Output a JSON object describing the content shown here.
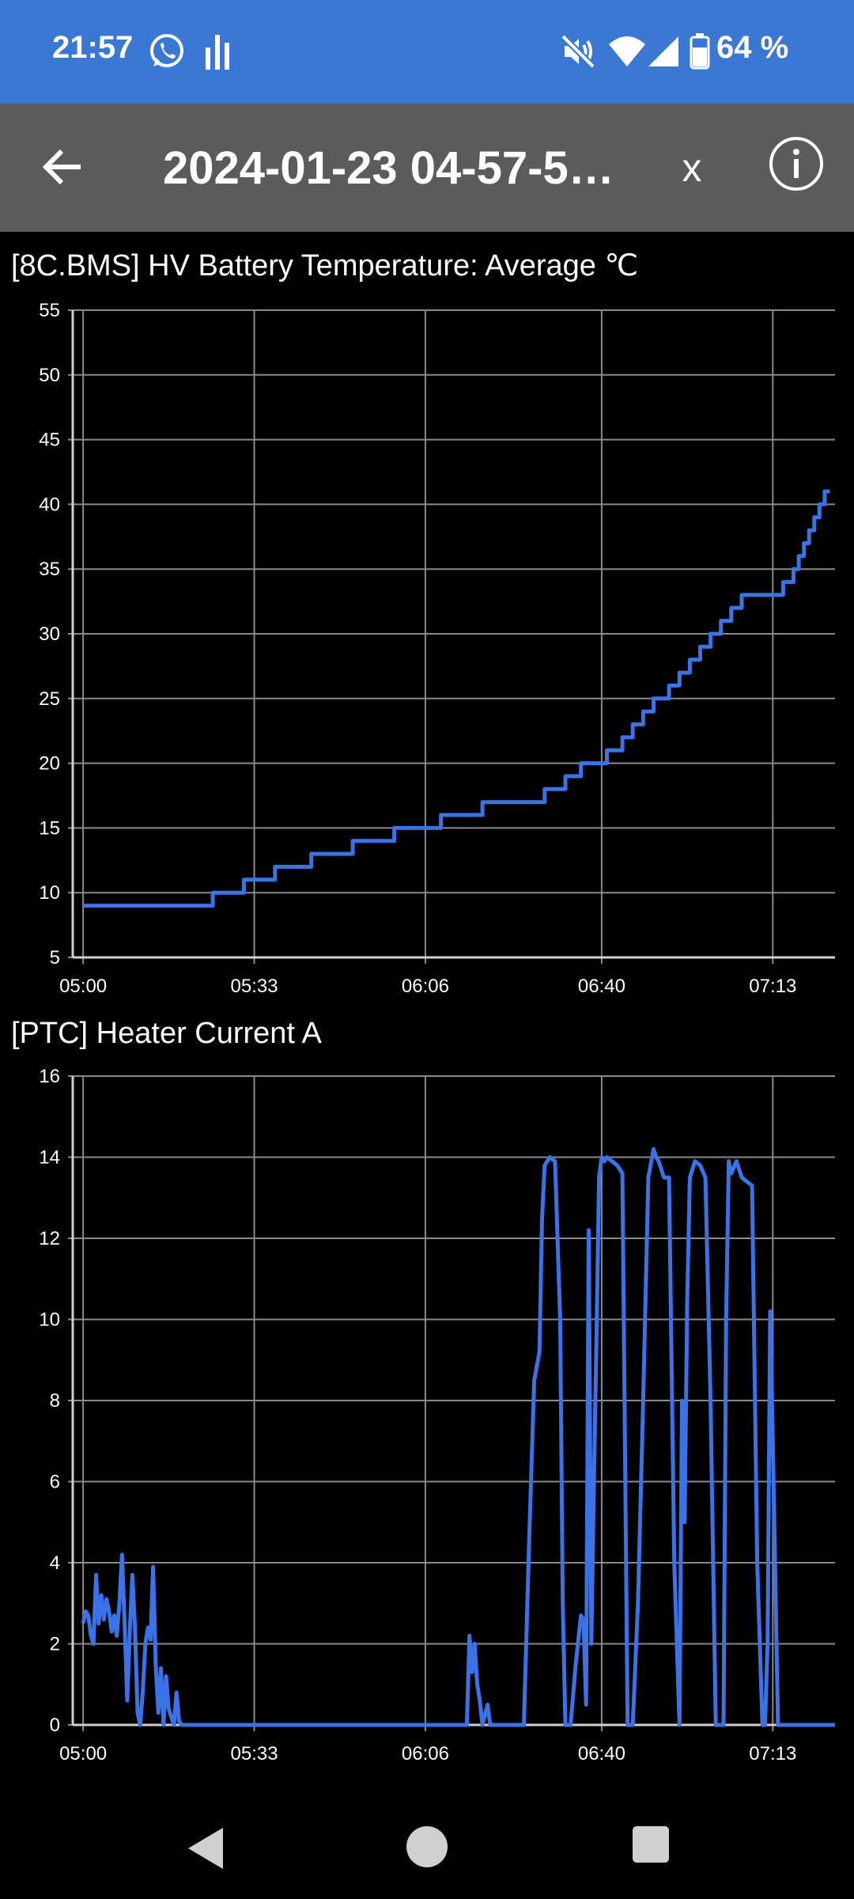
{
  "status_bar": {
    "time": "21:57",
    "battery": "64 %",
    "icons": [
      "whatsapp-icon",
      "bars-icon",
      "mute-icon",
      "wifi-icon",
      "signal-icon",
      "battery-icon"
    ]
  },
  "app_bar": {
    "title": "2024-01-23 04-57-5…",
    "close_label": "x",
    "icons": [
      "back-arrow-icon",
      "info-icon"
    ]
  },
  "colors": {
    "status_bar": "#3a78d4",
    "app_bar": "#5b5b5b",
    "line": "#3b73e6",
    "grid": "#8a8a8a",
    "background": "#000000"
  },
  "chart_data": [
    {
      "type": "line",
      "title": "[8C.BMS] HV Battery Temperature: Average  ℃",
      "x_tick_labels": [
        "05:00",
        "05:33",
        "06:06",
        "06:40",
        "07:13"
      ],
      "x_ticks_minutes": [
        0,
        33,
        66,
        100,
        133
      ],
      "xlim_minutes": [
        -2,
        145
      ],
      "ylim": [
        5,
        55
      ],
      "y_ticks": [
        5,
        10,
        15,
        20,
        25,
        30,
        35,
        40,
        45,
        50,
        55
      ],
      "grid": true,
      "series": [
        {
          "x_minutes": [
            0,
            25,
            25,
            31,
            31,
            37,
            37,
            44,
            44,
            52,
            52,
            60,
            60,
            69,
            69,
            77,
            77,
            89,
            89,
            93,
            93,
            96,
            96,
            101,
            101,
            104,
            104,
            106,
            106,
            108,
            108,
            110,
            110,
            113,
            113,
            115,
            115,
            117,
            117,
            119,
            119,
            121,
            121,
            123,
            123,
            125,
            125,
            127,
            127,
            129,
            129,
            135,
            135,
            137,
            137,
            138,
            138,
            139,
            139,
            140,
            140,
            141,
            141,
            142,
            142,
            143,
            143,
            144
          ],
          "values": [
            9,
            9,
            10,
            10,
            11,
            11,
            12,
            12,
            13,
            13,
            14,
            14,
            15,
            15,
            16,
            16,
            17,
            17,
            18,
            18,
            19,
            19,
            20,
            20,
            21,
            21,
            22,
            22,
            23,
            23,
            24,
            24,
            25,
            25,
            26,
            26,
            27,
            27,
            28,
            28,
            29,
            29,
            30,
            30,
            31,
            31,
            32,
            32,
            33,
            33,
            33,
            33,
            34,
            34,
            35,
            35,
            36,
            36,
            37,
            37,
            38,
            38,
            39,
            39,
            40,
            40,
            41,
            41
          ]
        }
      ]
    },
    {
      "type": "line",
      "title": "[PTC] Heater Current  A",
      "x_tick_labels": [
        "05:00",
        "05:33",
        "06:06",
        "06:40",
        "07:13"
      ],
      "x_ticks_minutes": [
        0,
        33,
        66,
        100,
        133
      ],
      "xlim_minutes": [
        -2,
        145
      ],
      "ylim": [
        0,
        16
      ],
      "y_ticks": [
        0,
        2,
        4,
        6,
        8,
        10,
        12,
        14,
        16
      ],
      "grid": true,
      "series": [
        {
          "x_minutes": [
            0,
            0.5,
            1,
            1.5,
            2,
            2.5,
            3,
            3.5,
            4,
            4.5,
            5,
            5.5,
            6,
            6.5,
            7,
            7.5,
            8,
            8.5,
            9,
            9.5,
            10,
            10.5,
            11,
            11.5,
            12,
            12.5,
            13,
            13.5,
            14,
            14.5,
            15,
            15.5,
            16,
            16.5,
            17,
            17.5,
            18,
            18.5,
            19,
            19.5,
            20,
            20.5,
            21,
            21.5,
            22,
            22.5,
            23,
            23.5,
            24,
            24.5,
            25,
            74,
            74.5,
            75,
            75.5,
            76,
            76.5,
            77,
            78,
            78.5,
            79,
            85,
            86,
            87,
            88,
            88.5,
            89,
            90,
            91,
            92,
            92.5,
            93,
            94,
            95,
            96,
            96.5,
            97,
            97.5,
            98,
            98.5,
            99,
            99.5,
            100,
            100.5,
            101,
            102,
            103,
            104,
            105,
            105.5,
            106,
            107,
            108,
            109,
            110,
            110.5,
            111,
            112,
            113,
            114,
            115,
            115.5,
            116,
            116.5,
            117,
            118,
            119,
            120,
            121,
            122,
            123,
            123.5,
            124,
            124.5,
            125,
            126,
            127,
            128,
            129,
            130,
            131,
            131.5,
            132,
            132.5,
            133,
            134,
            135,
            145
          ],
          "values": [
            2.5,
            2.8,
            2.7,
            2.2,
            2.0,
            3.7,
            2.5,
            3.2,
            2.6,
            3.1,
            2.8,
            2.3,
            2.7,
            2.2,
            3.0,
            4.2,
            2.5,
            0.6,
            2.3,
            3.7,
            2.4,
            0.3,
            0.0,
            0.8,
            2.0,
            2.4,
            2.1,
            3.9,
            1.5,
            0.3,
            1.4,
            0.0,
            1.2,
            0.4,
            0.2,
            0.0,
            0.8,
            0.1,
            0.0,
            0.0,
            0.0,
            0.0,
            0.0,
            0.0,
            0.0,
            0.0,
            0.0,
            0.0,
            0.0,
            0.0,
            0.0,
            0.0,
            2.2,
            1.3,
            2.0,
            1.0,
            0.6,
            0.0,
            0.5,
            0.0,
            0.0,
            0.0,
            4.5,
            8.5,
            9.2,
            12.5,
            13.8,
            14.0,
            13.9,
            10.0,
            3.0,
            0.0,
            0.0,
            1.5,
            2.7,
            2.6,
            0.5,
            12.2,
            2.0,
            6.0,
            9.5,
            13.5,
            14.0,
            13.9,
            14.0,
            13.9,
            13.8,
            13.6,
            0.0,
            0.0,
            0.0,
            3.0,
            8.0,
            13.5,
            14.2,
            14.0,
            13.9,
            13.5,
            13.5,
            4.0,
            0.0,
            8.0,
            5.0,
            10.5,
            13.5,
            13.9,
            13.8,
            13.5,
            8.0,
            0.0,
            0.0,
            0.0,
            10.0,
            13.9,
            13.6,
            13.9,
            13.5,
            13.4,
            13.3,
            4.0,
            0.0,
            0.0,
            2.0,
            10.2,
            7.0,
            0.0,
            0.0,
            0.0
          ]
        }
      ]
    }
  ]
}
